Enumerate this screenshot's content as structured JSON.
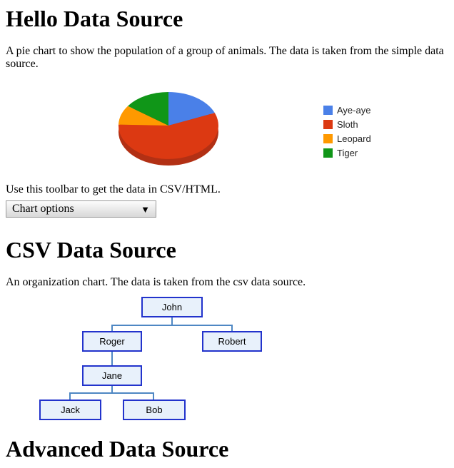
{
  "sections": {
    "hello": {
      "heading": "Hello Data Source",
      "description": "A pie chart to show the population of a group of animals. The data is taken from the simple data source.",
      "toolbar_hint": "Use this toolbar to get the data in CSV/HTML.",
      "toolbar": {
        "button_label": "Chart options",
        "arrow_glyph": "▼"
      }
    },
    "csv": {
      "heading": "CSV Data Source",
      "description": "An organization chart. The data is taken from the csv data source."
    },
    "advanced": {
      "heading": "Advanced Data Source"
    }
  },
  "chart_data": {
    "type": "pie",
    "style": "pie3d",
    "title": "",
    "categories": [
      "Aye-aye",
      "Sloth",
      "Leopard",
      "Tiger"
    ],
    "values": [
      100,
      300,
      50,
      80
    ],
    "percentages": [
      18.9,
      56.6,
      9.4,
      15.1
    ],
    "colors": [
      "#4A80E8",
      "#DC3912",
      "#FF9900",
      "#109618"
    ],
    "rim_color": "#B23014",
    "legend_position": "right",
    "start_angle_deg": 0,
    "direction": "clockwise"
  },
  "org_chart": {
    "nodes": [
      {
        "label": "John",
        "parent": null
      },
      {
        "label": "Roger",
        "parent": "John"
      },
      {
        "label": "Robert",
        "parent": "John"
      },
      {
        "label": "Jane",
        "parent": "Roger"
      },
      {
        "label": "Jack",
        "parent": "Jane"
      },
      {
        "label": "Bob",
        "parent": "Jane"
      }
    ],
    "node_background": "#E8F1FB",
    "node_border_color": "#2233CC",
    "connector_color": "#4E87C3"
  }
}
